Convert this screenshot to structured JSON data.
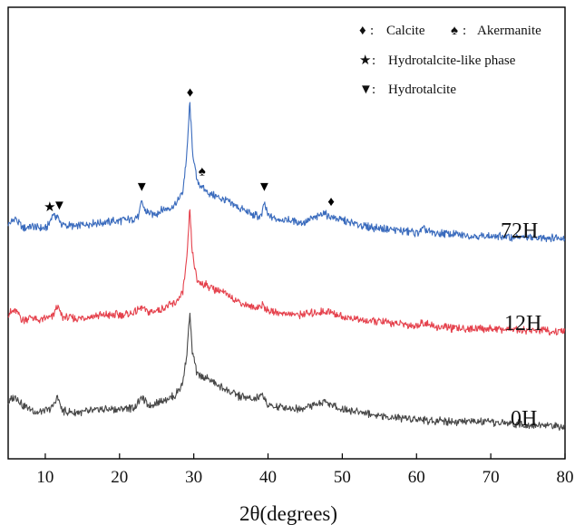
{
  "chart_data": {
    "type": "line",
    "xlabel": "2θ(degrees)",
    "ylabel": "",
    "xlim": [
      5,
      80
    ],
    "xticks": [
      10,
      20,
      30,
      40,
      50,
      60,
      70,
      80
    ],
    "y_ticks_shown": false,
    "grid": false,
    "legend": {
      "placement": "top-right",
      "entries": [
        {
          "symbol": "♦",
          "label": "Calcite"
        },
        {
          "symbol": "♠",
          "label": "Akermanite"
        },
        {
          "symbol": "★",
          "label": "Hydrotalcite-like phase"
        },
        {
          "symbol": "▼",
          "label": "Hydrotalcite"
        }
      ]
    },
    "series": [
      {
        "name": "72H",
        "color": "#3a6bbd",
        "offset": 2.0,
        "x": [
          5,
          6,
          7,
          8,
          9,
          10,
          10.5,
          11,
          11.6,
          12.3,
          14,
          16,
          18,
          20,
          22,
          22.6,
          23.0,
          23.5,
          24.5,
          26,
          27.5,
          28.5,
          29.1,
          29.45,
          29.8,
          30.4,
          31.0,
          31.6,
          32.5,
          34,
          35,
          36,
          37,
          38,
          39.1,
          39.5,
          39.9,
          41,
          43,
          45,
          46.5,
          47.5,
          48.5,
          49.5,
          51,
          53,
          55,
          57,
          60,
          61,
          62,
          65,
          70,
          75,
          80
        ],
        "y": [
          0.14,
          0.2,
          0.1,
          0.12,
          0.1,
          0.1,
          0.14,
          0.25,
          0.22,
          0.13,
          0.12,
          0.15,
          0.16,
          0.18,
          0.2,
          0.24,
          0.38,
          0.28,
          0.24,
          0.3,
          0.34,
          0.48,
          0.9,
          1.45,
          0.95,
          0.6,
          0.55,
          0.5,
          0.45,
          0.4,
          0.36,
          0.32,
          0.28,
          0.24,
          0.22,
          0.38,
          0.24,
          0.2,
          0.18,
          0.16,
          0.22,
          0.26,
          0.22,
          0.2,
          0.16,
          0.12,
          0.1,
          0.08,
          0.05,
          0.09,
          0.05,
          0.03,
          0.01,
          0.0,
          0.0
        ]
      },
      {
        "name": "12H",
        "color": "#e5424d",
        "offset": 1.0,
        "x": [
          5,
          6,
          7,
          8,
          9,
          10,
          11,
          11.6,
          12.3,
          14,
          16,
          18,
          20,
          22,
          23.0,
          24,
          26,
          27.5,
          28.5,
          29.1,
          29.45,
          29.8,
          30.4,
          31.0,
          32,
          34,
          36,
          38,
          39.4,
          40,
          42,
          44,
          46,
          48,
          50,
          53,
          56,
          60,
          61,
          62,
          65,
          70,
          75,
          80
        ],
        "y": [
          0.2,
          0.22,
          0.12,
          0.16,
          0.12,
          0.14,
          0.16,
          0.28,
          0.16,
          0.14,
          0.16,
          0.18,
          0.18,
          0.2,
          0.26,
          0.2,
          0.26,
          0.3,
          0.42,
          0.78,
          1.3,
          0.85,
          0.55,
          0.52,
          0.48,
          0.42,
          0.32,
          0.26,
          0.28,
          0.22,
          0.2,
          0.18,
          0.2,
          0.22,
          0.16,
          0.12,
          0.1,
          0.06,
          0.1,
          0.06,
          0.04,
          0.03,
          0.02,
          0.0
        ]
      },
      {
        "name": "0H",
        "color": "#474747",
        "offset": 0.0,
        "x": [
          5,
          6,
          7,
          8,
          9,
          10,
          11,
          11.6,
          12.3,
          14,
          16,
          18,
          20,
          22,
          23.0,
          24,
          26,
          27.5,
          28.5,
          29.1,
          29.45,
          29.8,
          30.4,
          31.0,
          32,
          34,
          36,
          38,
          39.4,
          40,
          42,
          44,
          46,
          47.5,
          48.5,
          50,
          53,
          56,
          60,
          62,
          65,
          70,
          75,
          80
        ],
        "y": [
          0.26,
          0.32,
          0.22,
          0.18,
          0.14,
          0.16,
          0.2,
          0.32,
          0.16,
          0.14,
          0.16,
          0.18,
          0.18,
          0.2,
          0.3,
          0.22,
          0.28,
          0.32,
          0.46,
          0.8,
          1.2,
          0.8,
          0.56,
          0.52,
          0.5,
          0.4,
          0.32,
          0.28,
          0.32,
          0.22,
          0.2,
          0.18,
          0.22,
          0.26,
          0.22,
          0.18,
          0.14,
          0.1,
          0.08,
          0.06,
          0.05,
          0.04,
          0.02,
          0.0
        ]
      }
    ],
    "peak_markers": [
      {
        "symbol": "★",
        "x": 10.6,
        "series": "72H"
      },
      {
        "symbol": "▼",
        "x": 11.9,
        "series": "72H"
      },
      {
        "symbol": "▼",
        "x": 23.0,
        "series": "72H"
      },
      {
        "symbol": "♦",
        "x": 29.5,
        "series": "72H"
      },
      {
        "symbol": "♠",
        "x": 31.1,
        "series": "72H"
      },
      {
        "symbol": "▼",
        "x": 39.5,
        "series": "72H"
      },
      {
        "symbol": "♦",
        "x": 48.5,
        "series": "72H"
      }
    ]
  }
}
